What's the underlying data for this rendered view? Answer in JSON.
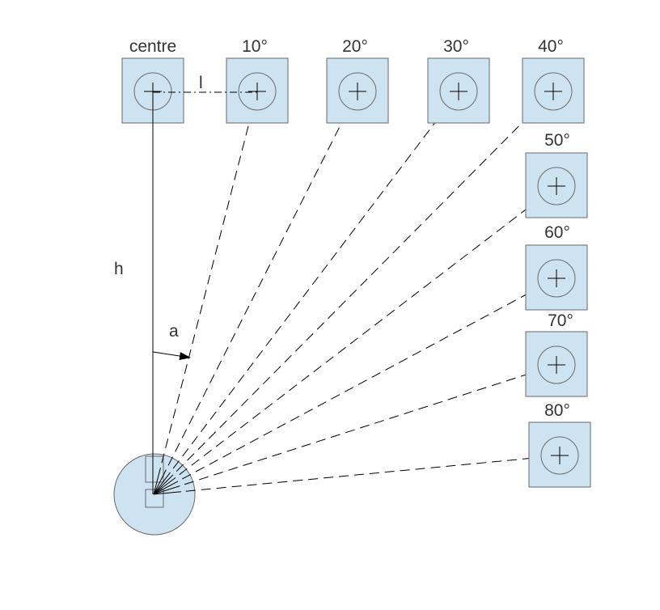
{
  "diagram": {
    "targets": [
      {
        "label": "centre",
        "angle_deg": 0
      },
      {
        "label": "10°",
        "angle_deg": 10
      },
      {
        "label": "20°",
        "angle_deg": 20
      },
      {
        "label": "30°",
        "angle_deg": 30
      },
      {
        "label": "40°",
        "angle_deg": 40
      },
      {
        "label": "50°",
        "angle_deg": 50
      },
      {
        "label": "60°",
        "angle_deg": 60
      },
      {
        "label": "70°",
        "angle_deg": 70
      },
      {
        "label": "80°",
        "angle_deg": 80
      }
    ],
    "symbols": {
      "h": "h",
      "l": "l",
      "a": "a"
    },
    "colors": {
      "fill": "#cde3f1",
      "stroke": "#6a6a6a",
      "line": "#000000",
      "text": "#333333"
    }
  }
}
